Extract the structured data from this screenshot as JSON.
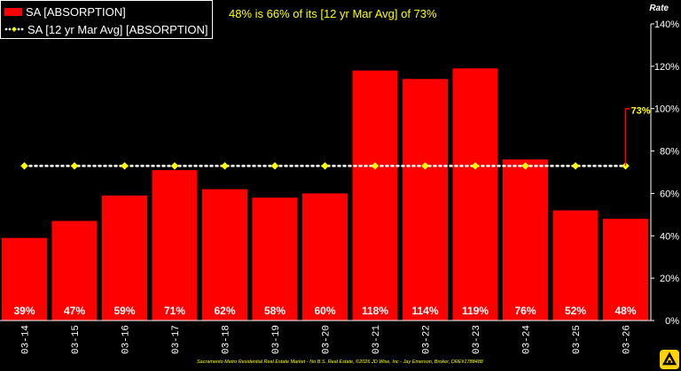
{
  "legend": {
    "series1": "SA [ABSORPTION]",
    "series2": "SA [12 yr Mar Avg] [ABSORPTION]"
  },
  "annotation": "48% is 66% of its [12 yr Mar Avg] of 73%",
  "axis_title": "Rate",
  "footer": "Sacramento Metro Residential Real Estate Market - No B.S. Real Estate, ©2026 JD Wise, Inc - Jay Emerson, Broker, DRE#1788488",
  "colors": {
    "bar": "#ff0000",
    "avg_line": "#ffffff",
    "avg_marker": "#ffff00",
    "annotation": "#ffff00"
  },
  "chart_data": {
    "type": "bar",
    "categories": [
      "03-14",
      "03-15",
      "03-16",
      "03-17",
      "03-18",
      "03-19",
      "03-20",
      "03-21",
      "03-22",
      "03-23",
      "03-24",
      "03-25",
      "03-26"
    ],
    "series": [
      {
        "name": "SA [ABSORPTION]",
        "type": "bar",
        "values": [
          39,
          47,
          59,
          71,
          62,
          58,
          60,
          118,
          114,
          119,
          76,
          52,
          48
        ],
        "labels": [
          "39%",
          "47%",
          "59%",
          "71%",
          "62%",
          "58%",
          "60%",
          "118%",
          "114%",
          "119%",
          "76%",
          "52%",
          "48%"
        ]
      },
      {
        "name": "SA [12 yr Mar Avg] [ABSORPTION]",
        "type": "line",
        "values": [
          73,
          73,
          73,
          73,
          73,
          73,
          73,
          73,
          73,
          73,
          73,
          73,
          73
        ]
      }
    ],
    "avg_callout": {
      "label": "73%",
      "value": 73,
      "top_value": 100
    },
    "ylabel": "Rate",
    "ylim": [
      0,
      140
    ],
    "yticks": [
      0,
      20,
      40,
      60,
      80,
      100,
      120,
      140
    ],
    "ytick_labels": [
      "0%",
      "20%",
      "40%",
      "60%",
      "80%",
      "100%",
      "120%",
      "140%"
    ],
    "y_axis_side": "right",
    "grid": false,
    "legend_position": "top-left"
  }
}
